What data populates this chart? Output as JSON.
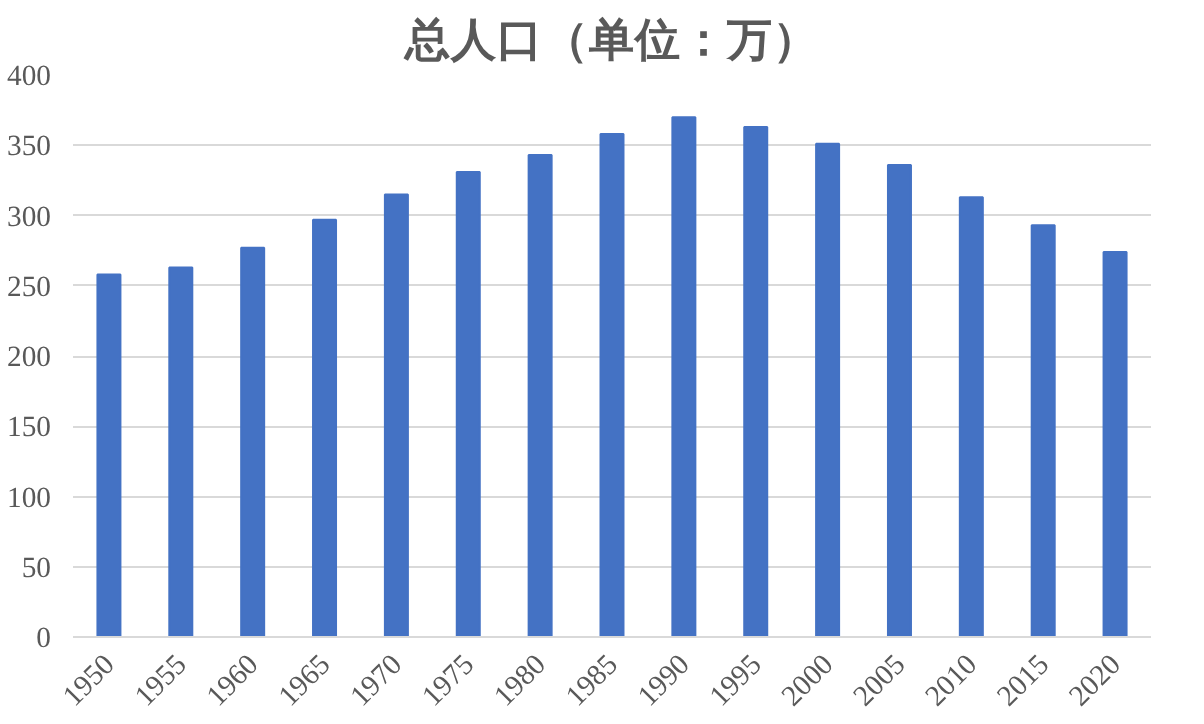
{
  "chart_data": {
    "type": "bar",
    "title": "总人口（单位：万）",
    "categories": [
      "1950",
      "1955",
      "1960",
      "1965",
      "1970",
      "1975",
      "1980",
      "1985",
      "1990",
      "1995",
      "2000",
      "2005",
      "2010",
      "2015",
      "2020"
    ],
    "values": [
      258,
      263,
      277,
      297,
      315,
      331,
      343,
      358,
      370,
      363,
      351,
      336,
      313,
      293,
      274
    ],
    "color": "#4472c4",
    "ylim": [
      0,
      400
    ],
    "yticks": [
      0,
      50,
      100,
      150,
      200,
      250,
      300,
      350,
      400
    ],
    "grid": "y"
  }
}
